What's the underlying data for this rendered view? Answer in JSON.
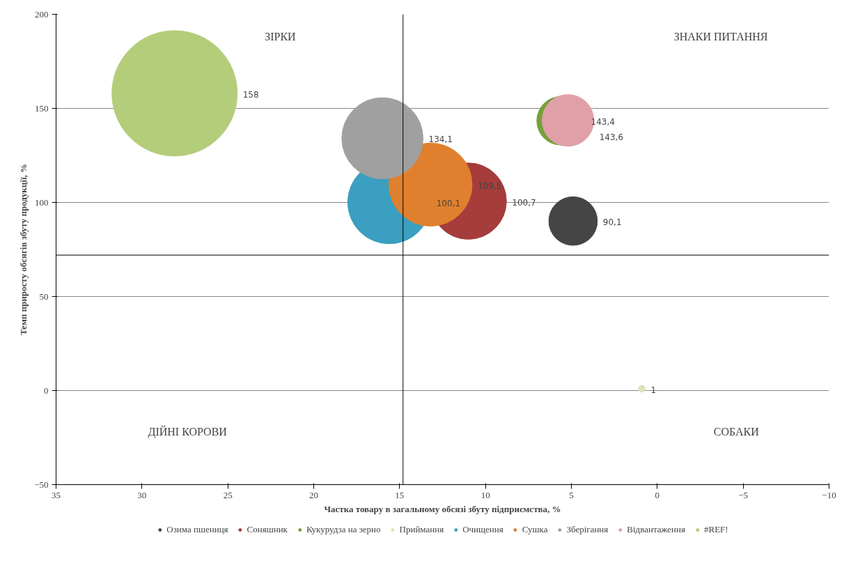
{
  "chart_data": {
    "type": "bubble",
    "xlabel": "Частка товару в загальному обсязі збуту підприємства, %",
    "ylabel": "Темп приросту обсягів збуту продукції, %",
    "xlim": [
      35,
      -10
    ],
    "xticks": [
      35,
      30,
      25,
      20,
      15,
      10,
      5,
      0,
      -5,
      -10
    ],
    "ylim": [
      -50,
      200
    ],
    "yticks": [
      -50,
      0,
      50,
      100,
      150,
      200
    ],
    "grid": "y",
    "legend": "bottom",
    "series": [
      {
        "name": "Озима пшениця",
        "color": "#454545",
        "x": [
          4.9
        ],
        "values": [
          90.1
        ],
        "sizes": [
          0.15
        ],
        "value_labels": [
          "90,1"
        ]
      },
      {
        "name": "Соняшник",
        "color": "#a63c3c",
        "x": [
          11.0
        ],
        "values": [
          100.7
        ],
        "sizes": [
          0.37
        ],
        "value_labels": [
          "100,7"
        ]
      },
      {
        "name": "Кукурудза на зерно",
        "color": "#76a03c",
        "x": [
          5.6
        ],
        "values": [
          143.4
        ],
        "sizes": [
          0.15
        ],
        "value_labels": [
          "143,4"
        ]
      },
      {
        "name": "Приймання",
        "color": "#d9e4bd",
        "x": [
          0.9
        ],
        "values": [
          1
        ],
        "sizes": [
          0.003
        ],
        "value_labels": [
          "1"
        ]
      },
      {
        "name": "Очищення",
        "color": "#3a9fc0",
        "x": [
          15.6
        ],
        "values": [
          100.1
        ],
        "sizes": [
          0.44
        ],
        "value_labels": [
          "100,1"
        ]
      },
      {
        "name": "Сушка",
        "color": "#e0802e",
        "x": [
          13.2
        ],
        "values": [
          109.5
        ],
        "sizes": [
          0.44
        ],
        "value_labels": [
          "109,5"
        ]
      },
      {
        "name": "Зберігання",
        "color": "#a0a0a0",
        "x": [
          16.0
        ],
        "values": [
          134.1
        ],
        "sizes": [
          0.42
        ],
        "value_labels": [
          "134,1"
        ]
      },
      {
        "name": "Відвантаження",
        "color": "#e0a0a8",
        "x": [
          5.2
        ],
        "values": [
          143.6
        ],
        "sizes": [
          0.17
        ],
        "value_labels": [
          "143,6"
        ]
      },
      {
        "name": "#REF!",
        "color": "#b3cd7a",
        "x": [
          28.1
        ],
        "values": [
          158
        ],
        "sizes": [
          1
        ],
        "value_labels": [
          "158"
        ]
      }
    ],
    "ref_lines": [
      {
        "axis": "x",
        "value": 14.8,
        "color": "#000000"
      },
      {
        "axis": "y",
        "value": 72,
        "color": "#000000"
      }
    ],
    "annotations": [
      "ЗІРКИ",
      "ЗНАКИ ПИТАННЯ",
      "ДІЙНІ КОРОВИ",
      "СОБАКИ"
    ]
  }
}
